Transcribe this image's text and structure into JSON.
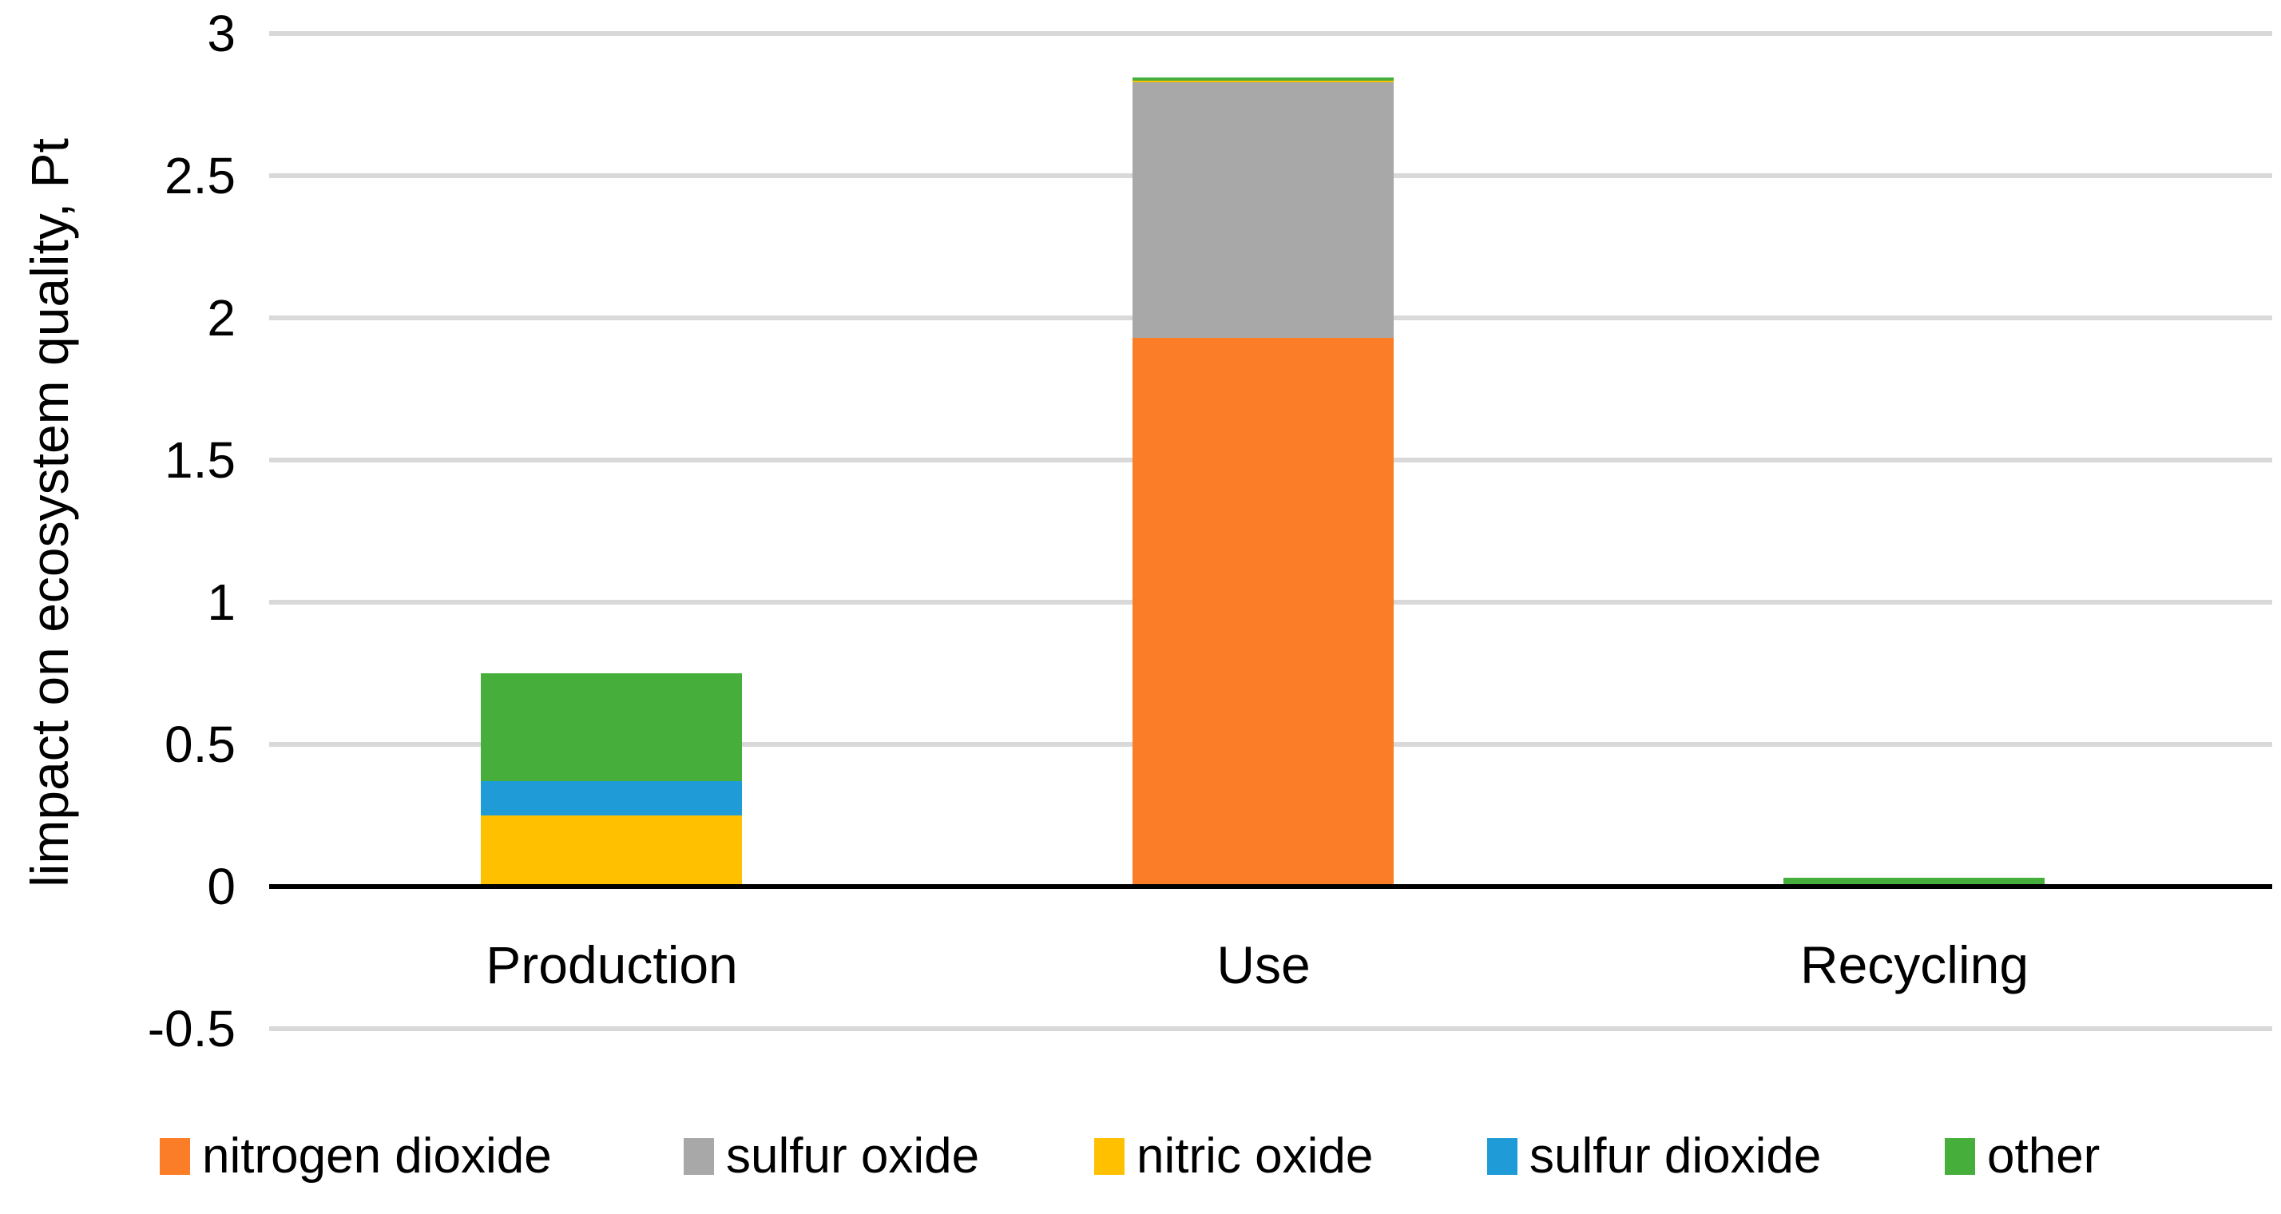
{
  "chart_data": {
    "type": "bar",
    "stacked": true,
    "title": "",
    "xlabel": "",
    "ylabel": "limpact on ecosystem quality, Pt",
    "categories": [
      "Production",
      "Use",
      "Recycling"
    ],
    "series": [
      {
        "name": "nitrogen dioxide",
        "color": "#FC7D28",
        "values": [
          0,
          1.93,
          0
        ]
      },
      {
        "name": "sulfur oxide",
        "color": "#A8A8A8",
        "values": [
          0,
          0.9,
          0
        ]
      },
      {
        "name": "nitric oxide",
        "color": "#FFC000",
        "values": [
          0.25,
          0.005,
          0
        ]
      },
      {
        "name": "sulfur dioxide",
        "color": "#1F9CD8",
        "values": [
          0.12,
          0,
          0
        ]
      },
      {
        "name": "other",
        "color": "#46AF3C",
        "values": [
          0.38,
          0.01,
          0.03
        ]
      }
    ],
    "ylim": [
      -0.5,
      3
    ],
    "yticks": [
      3,
      2.5,
      2,
      1.5,
      1,
      0.5,
      0,
      -0.5
    ],
    "ytick_labels": [
      "3",
      "2.5",
      "2",
      "1.5",
      "1",
      "0.5",
      "0",
      "-0.5"
    ],
    "grid": "horizontal",
    "gridline_color": "#D9D9D9",
    "axis_color": "#000000",
    "text_color": "#000000",
    "background": "#FFFFFF",
    "legend_position": "bottom",
    "legend": [
      "nitrogen dioxide",
      "sulfur oxide",
      "nitric oxide",
      "sulfur dioxide",
      "other"
    ]
  }
}
